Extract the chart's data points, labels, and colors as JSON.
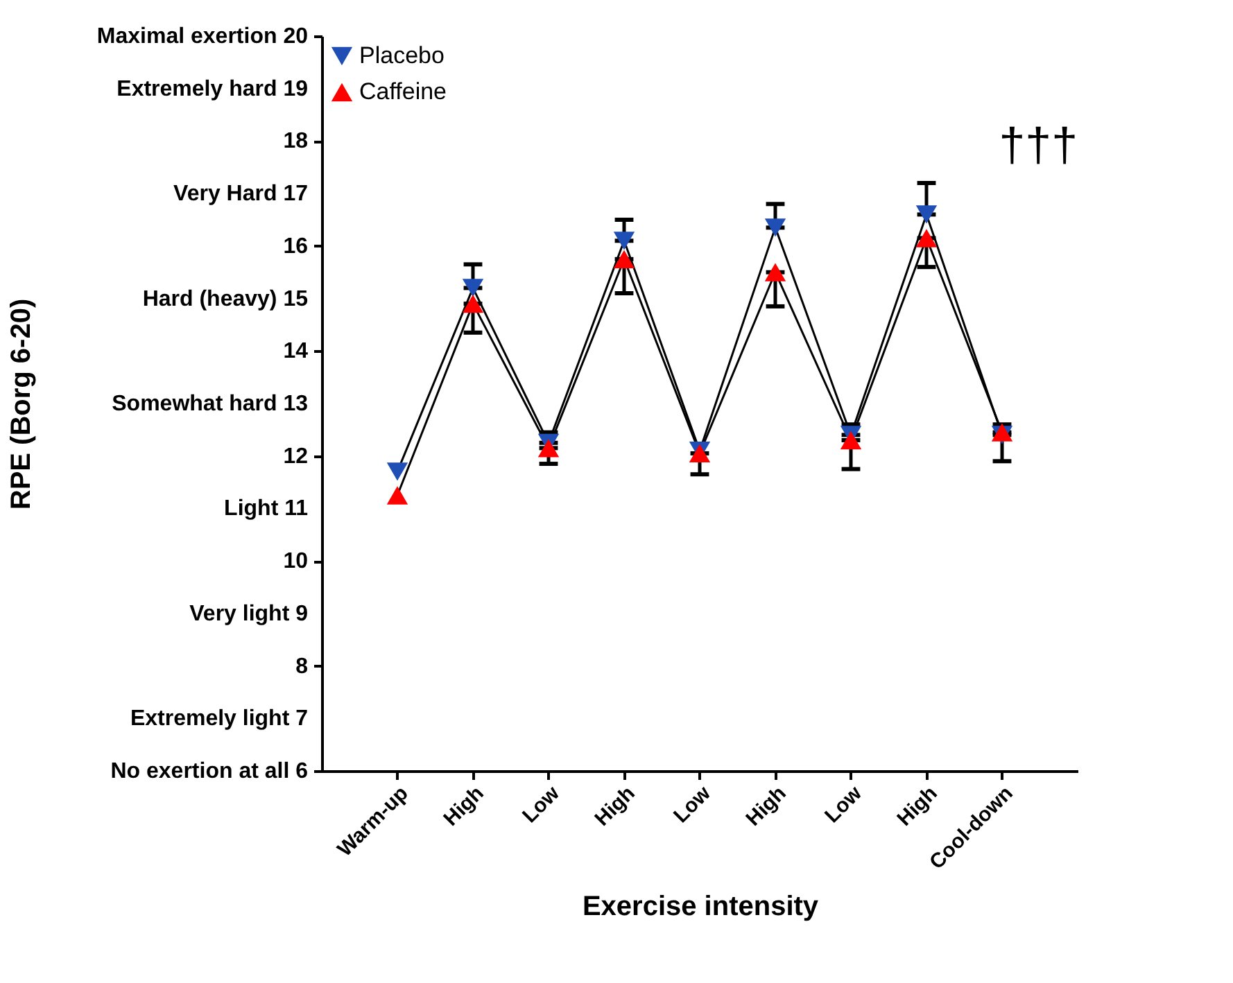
{
  "chart_data": {
    "type": "line",
    "xlabel": "Exercise intensity",
    "ylabel": "RPE (Borg 6-20)",
    "categories": [
      "Warm-up",
      "High",
      "Low",
      "High",
      "Low",
      "High",
      "Low",
      "High",
      "Cool-down"
    ],
    "series": [
      {
        "name": "Placebo",
        "color": "#1f4fb5",
        "marker": "triangle-down",
        "values": [
          11.7,
          15.2,
          12.25,
          16.1,
          12.1,
          16.35,
          12.4,
          16.6,
          12.4
        ],
        "errors": [
          null,
          [
            15.2,
            15.65
          ],
          [
            12.25,
            12.45
          ],
          [
            16.1,
            16.5
          ],
          null,
          [
            16.35,
            16.8
          ],
          [
            12.4,
            12.6
          ],
          [
            16.6,
            17.2
          ],
          [
            12.4,
            12.6
          ]
        ]
      },
      {
        "name": "Caffeine",
        "color": "#ff0000",
        "marker": "triangle-up",
        "values": [
          11.25,
          14.9,
          12.15,
          15.75,
          12.05,
          15.5,
          12.3,
          16.15,
          12.45
        ],
        "errors": [
          null,
          [
            14.35,
            14.9
          ],
          [
            11.85,
            12.15
          ],
          [
            15.1,
            15.75
          ],
          [
            11.65,
            12.05
          ],
          [
            14.85,
            15.5
          ],
          [
            11.75,
            12.3
          ],
          [
            15.6,
            16.15
          ],
          [
            11.9,
            12.45
          ]
        ]
      }
    ],
    "ylim": [
      6,
      20
    ],
    "yticks": [
      {
        "value": 6,
        "label": "No exertion at all 6"
      },
      {
        "value": 7,
        "label": "Extremely light 7"
      },
      8,
      {
        "value": 9,
        "label": "Very light 9"
      },
      10,
      {
        "value": 11,
        "label": "Light 11"
      },
      12,
      {
        "value": 13,
        "label": "Somewhat hard 13"
      },
      14,
      {
        "value": 15,
        "label": "Hard (heavy) 15"
      },
      16,
      {
        "value": 17,
        "label": "Very Hard 17"
      },
      18,
      {
        "value": 19,
        "label": "Extremely hard 19"
      },
      {
        "value": 20,
        "label": "Maximal exertion 20"
      }
    ],
    "annotations": [
      "†††"
    ],
    "legend": "top left",
    "grid": false,
    "line_style": "solid"
  }
}
